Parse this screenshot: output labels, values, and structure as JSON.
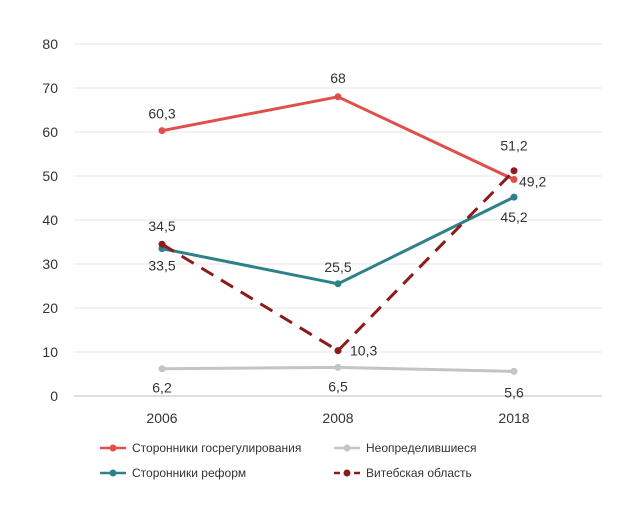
{
  "chart_data": {
    "type": "line",
    "categories": [
      "2006",
      "2008",
      "2018"
    ],
    "ylim": [
      0,
      80
    ],
    "yticks": [
      "0",
      "10",
      "20",
      "30",
      "40",
      "50",
      "60",
      "70",
      "80"
    ],
    "grid": true,
    "legend_position": "bottom",
    "series": [
      {
        "name": "Сторонники госрегулирования",
        "color": "#e0504a",
        "dash": "solid",
        "values": [
          60.3,
          68,
          49.2
        ],
        "labels": [
          "60,3",
          "68",
          "49,2"
        ]
      },
      {
        "name": "Неопределившиеся",
        "color": "#c4c4c4",
        "dash": "solid",
        "values": [
          6.2,
          6.5,
          5.6
        ],
        "labels": [
          "6,2",
          "6,5",
          "5,6"
        ]
      },
      {
        "name": "Сторонники реформ",
        "color": "#2e8189",
        "dash": "solid",
        "values": [
          33.5,
          25.5,
          45.2
        ],
        "labels": [
          "33,5",
          "25,5",
          "45,2"
        ]
      },
      {
        "name": "Витебская область",
        "color": "#8e1b1b",
        "dash": "dashed",
        "values": [
          34.5,
          10.3,
          51.2
        ],
        "labels": [
          "34,5",
          "10,3",
          "51,2"
        ]
      }
    ]
  }
}
